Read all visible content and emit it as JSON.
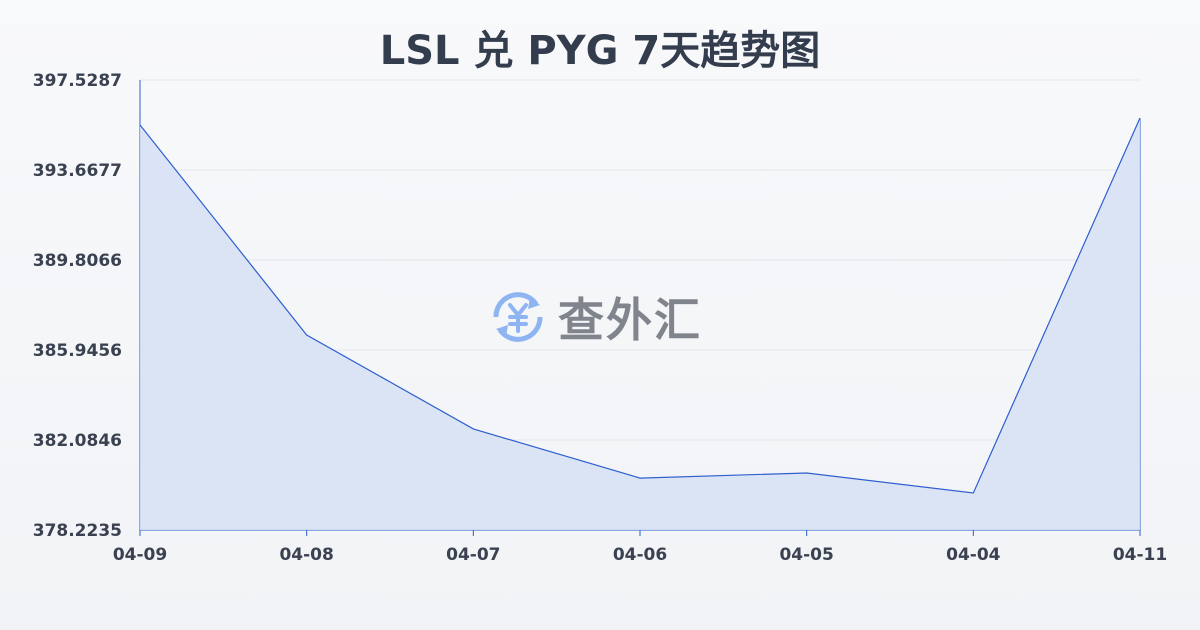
{
  "chart_data": {
    "type": "area",
    "title": "LSL 兑 PYG 7天趋势图",
    "categories": [
      "04-09",
      "04-08",
      "04-07",
      "04-06",
      "04-05",
      "04-04",
      "04-11"
    ],
    "values": [
      395.6,
      386.59,
      382.56,
      380.45,
      380.67,
      379.81,
      395.9
    ],
    "ylim": [
      378.2235,
      397.5287
    ],
    "yticks": [
      "397.5287",
      "393.6677",
      "389.8066",
      "385.9456",
      "382.0846",
      "378.2235"
    ],
    "grid": true,
    "colors": {
      "line": "#2f5fcf",
      "fill": "#d6e0f5"
    }
  },
  "watermark": {
    "text": "查外汇",
    "icon": "yen-exchange-icon"
  }
}
